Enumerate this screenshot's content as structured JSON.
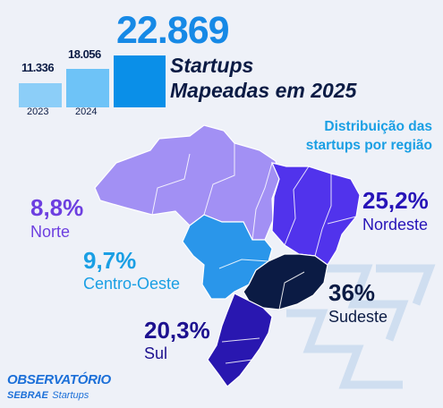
{
  "summary": {
    "big_number": "22.869",
    "headline_line1": "Startups",
    "headline_line2": "Mapeadas em 2025"
  },
  "mini_bars": [
    {
      "year": "2023",
      "value": "11.336",
      "count": 11336,
      "color": "#8ccef8"
    },
    {
      "year": "2024",
      "value": "18.056",
      "count": 18056,
      "color": "#6ec3f7"
    },
    {
      "year": "2025",
      "value": "",
      "count": 22869,
      "color": "#0a8fe8"
    }
  ],
  "map_subtitle_line1": "Distribuição das",
  "map_subtitle_line2": "startups por região",
  "regions": {
    "norte": {
      "pct": "8,8%",
      "name": "Norte",
      "label_color": "#6d3fe0",
      "fill": "#a290f4"
    },
    "nordeste": {
      "pct": "25,2%",
      "name": "Nordeste",
      "label_color": "#2714b8",
      "fill": "#5133ec"
    },
    "centro_oeste": {
      "pct": "9,7%",
      "name": "Centro-Oeste",
      "label_color": "#1a9fe4",
      "fill": "#2a96ea"
    },
    "sudeste": {
      "pct": "36%",
      "name": "Sudeste",
      "label_color": "#0b1b44",
      "fill": "#0b1b44"
    },
    "sul": {
      "pct": "20,3%",
      "name": "Sul",
      "label_color": "#1d118f",
      "fill": "#2917b0"
    }
  },
  "logo": {
    "line1": "OBSERVATÓRIO",
    "line2a": "SEBRAE",
    "line2b": "Startups"
  }
}
